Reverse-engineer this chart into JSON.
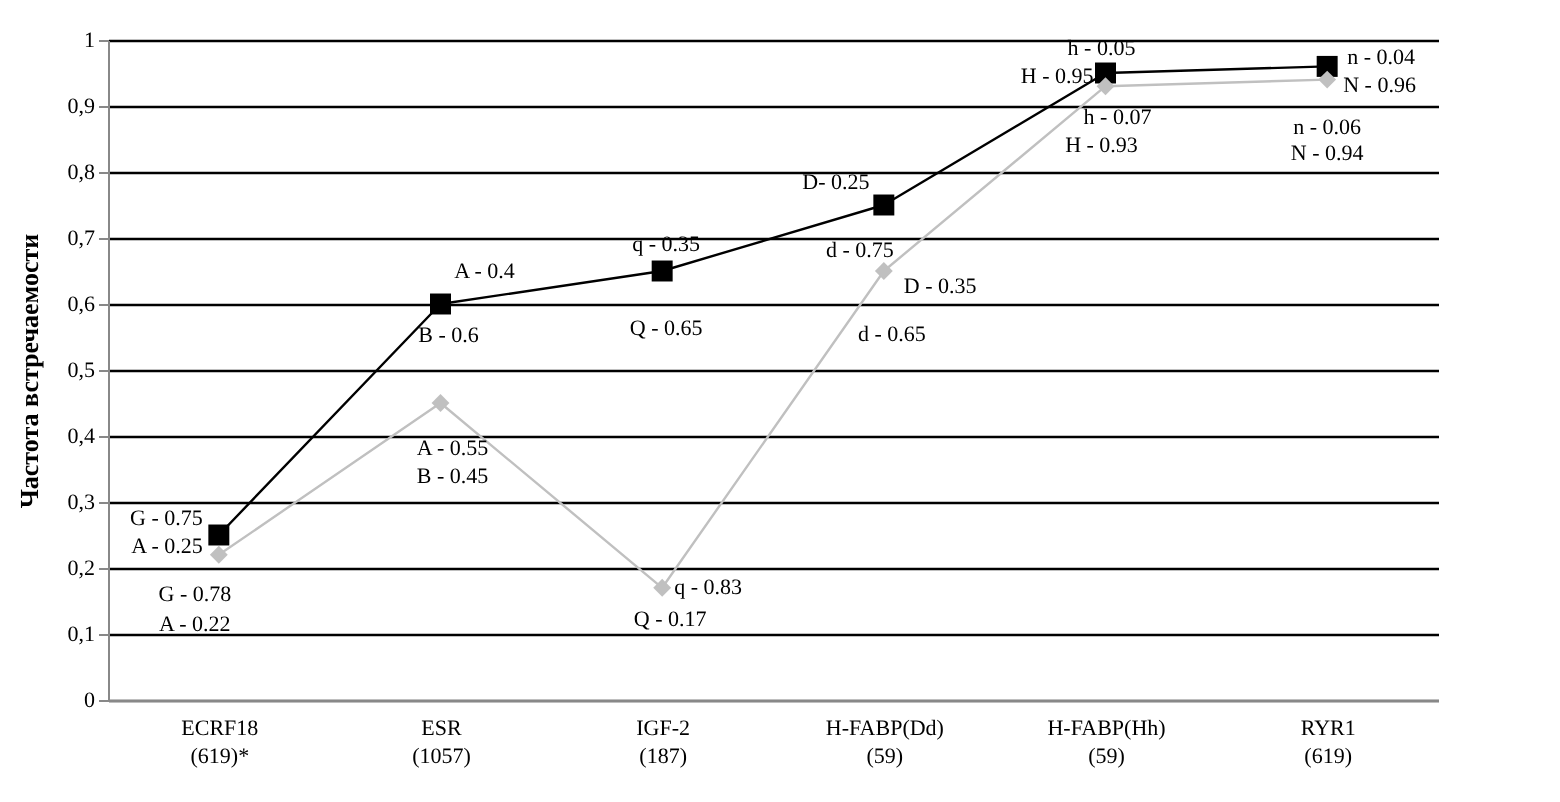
{
  "chart_data": {
    "type": "line",
    "ylabel": "Частота встречаемости",
    "categories": [
      "ECRF18\n(619)*",
      "ESR\n(1057)",
      "IGF-2\n(187)",
      "H-FABP(Dd)\n(59)",
      "H-FABP(Hh)\n(59)",
      "RYR1\n(619)"
    ],
    "series": [
      {
        "color": "#000000",
        "marker": "square",
        "values": [
          0.25,
          0.6,
          0.65,
          0.75,
          0.95,
          0.96
        ]
      },
      {
        "color": "#c0c0c0",
        "marker": "diamond",
        "values": [
          0.22,
          0.45,
          0.17,
          0.65,
          0.93,
          0.94
        ]
      }
    ],
    "ylim": [
      0,
      1
    ],
    "yticks": [
      0,
      {
        "value": 0.1,
        "label": "0,1"
      },
      {
        "value": 0.2,
        "label": "0,2"
      },
      {
        "value": 0.3,
        "label": "0,3"
      },
      {
        "value": 0.4,
        "label": "0,4"
      },
      {
        "value": 0.5,
        "label": "0,5"
      },
      {
        "value": 0.6,
        "label": "0,6"
      },
      {
        "value": 0.7,
        "label": "0,7"
      },
      {
        "value": 0.8,
        "label": "0,8"
      },
      {
        "value": 0.9,
        "label": "0,9"
      },
      1
    ],
    "grid": "y",
    "annotations": [
      {
        "text": "G - 0.75",
        "x": "ECRF18\n(619)*",
        "y": 0.25
      },
      {
        "text": "A - 0.25",
        "x": "ECRF18\n(619)*",
        "y": 0.25
      },
      {
        "text": "G - 0.78",
        "x": "ECRF18\n(619)*",
        "y": 0.22
      },
      {
        "text": "A - 0.22",
        "x": "ECRF18\n(619)*",
        "y": 0.22
      },
      {
        "text": "A - 0.4",
        "x": "ESR\n(1057)",
        "y": 0.6
      },
      {
        "text": "B - 0.6",
        "x": "ESR\n(1057)",
        "y": 0.6
      },
      {
        "text": "A - 0.55",
        "x": "ESR\n(1057)",
        "y": 0.45
      },
      {
        "text": "B - 0.45",
        "x": "ESR\n(1057)",
        "y": 0.45
      },
      {
        "text": "q - 0.35",
        "x": "IGF-2\n(187)",
        "y": 0.65
      },
      {
        "text": "Q - 0.65",
        "x": "IGF-2\n(187)",
        "y": 0.65
      },
      {
        "text": "q - 0.83",
        "x": "IGF-2\n(187)",
        "y": 0.17
      },
      {
        "text": "Q - 0.17",
        "x": "IGF-2\n(187)",
        "y": 0.17
      },
      {
        "text": "D- 0.25",
        "x": "H-FABP(Dd)\n(59)",
        "y": 0.75
      },
      {
        "text": "d - 0.75",
        "x": "H-FABP(Dd)\n(59)",
        "y": 0.75
      },
      {
        "text": "D - 0.35",
        "x": "H-FABP(Dd)\n(59)",
        "y": 0.65
      },
      {
        "text": "d - 0.65",
        "x": "H-FABP(Dd)\n(59)",
        "y": 0.65
      },
      {
        "text": "h - 0.05",
        "x": "H-FABP(Hh)\n(59)",
        "y": 0.95
      },
      {
        "text": "H - 0.95",
        "x": "H-FABP(Hh)\n(59)",
        "y": 0.95
      },
      {
        "text": "h - 0.07",
        "x": "H-FABP(Hh)\n(59)",
        "y": 0.93
      },
      {
        "text": "H - 0.93",
        "x": "H-FABP(Hh)\n(59)",
        "y": 0.93
      },
      {
        "text": "n - 0.04",
        "x": "RYR1\n(619)",
        "y": 0.96
      },
      {
        "text": "N - 0.96",
        "x": "RYR1\n(619)",
        "y": 0.96
      },
      {
        "text": "n - 0.06",
        "x": "RYR1\n(619)",
        "y": 0.94
      },
      {
        "text": "N - 0.94",
        "x": "RYR1\n(619)",
        "y": 0.94
      }
    ]
  }
}
